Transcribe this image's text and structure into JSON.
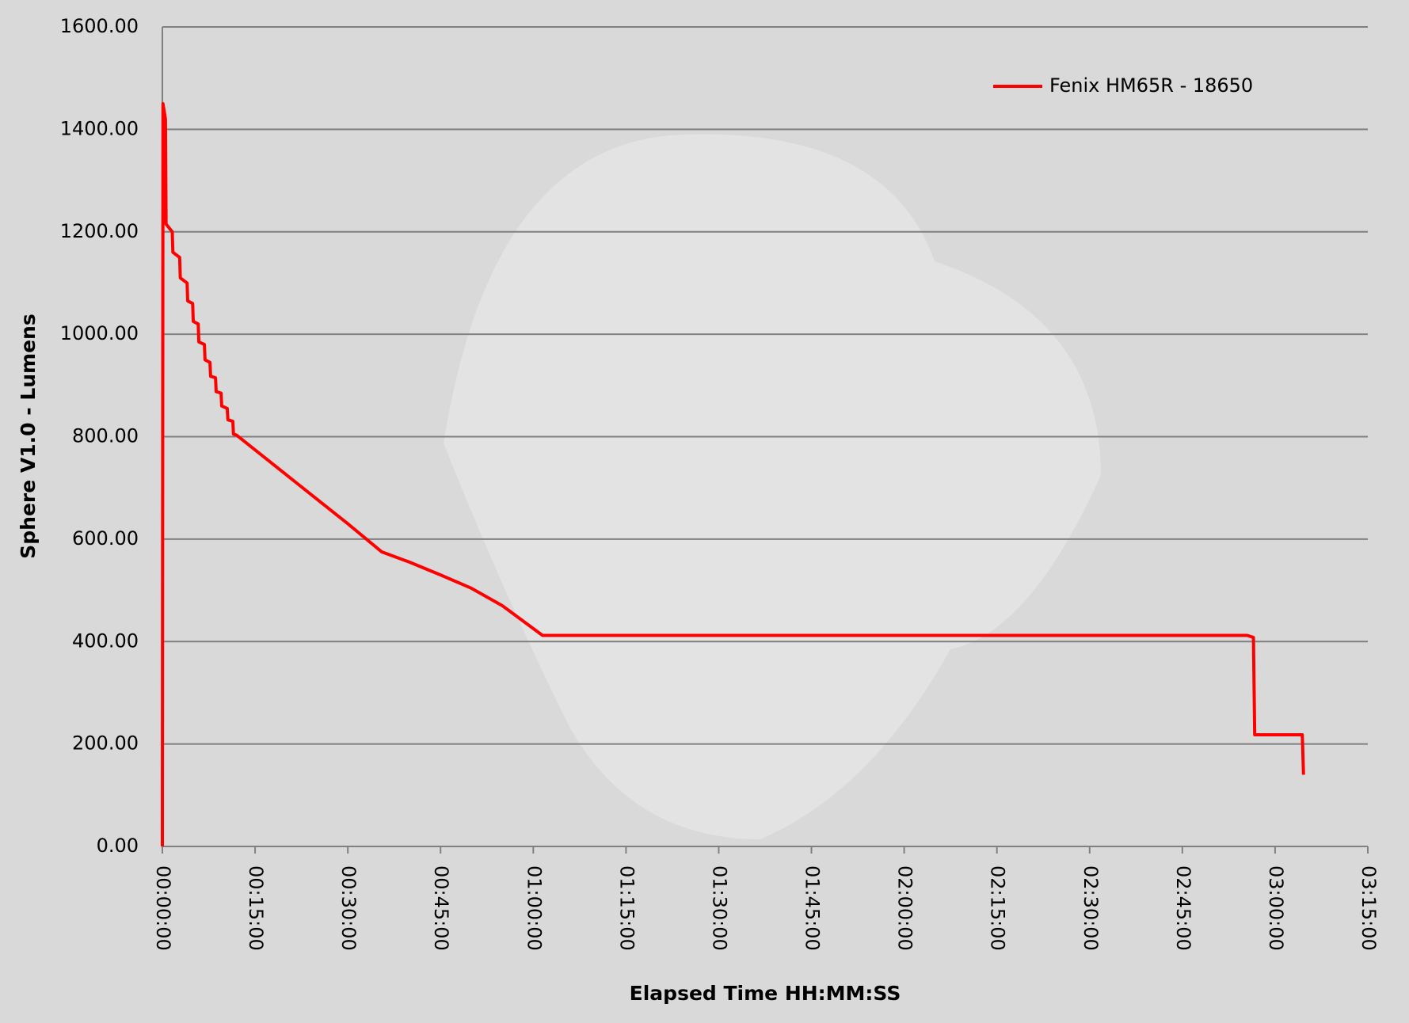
{
  "chart_data": {
    "type": "line",
    "y_label": "Sphere V1.0 - Lumens",
    "x_label": "Elapsed Time HH:MM:SS",
    "x": [
      0,
      0.1,
      0.5,
      0.6,
      1.6,
      1.7,
      2.8,
      2.9,
      4.0,
      4.1,
      4.9,
      5.0,
      5.8,
      5.9,
      6.8,
      6.9,
      7.7,
      7.8,
      8.6,
      8.7,
      9.5,
      9.6,
      10.5,
      10.6,
      11.4,
      11.5,
      12,
      20,
      30,
      35.5,
      40,
      45,
      50,
      55,
      61.5,
      100,
      140,
      175.5,
      176.5,
      176.7,
      184.4,
      184.6
    ],
    "series": [
      {
        "name": "Fenix HM65R - 18650",
        "color": "#ff0000",
        "values": [
          0,
          1450,
          1420,
          1215,
          1200,
          1160,
          1150,
          1110,
          1100,
          1065,
          1060,
          1025,
          1020,
          985,
          980,
          950,
          945,
          918,
          915,
          888,
          885,
          860,
          855,
          833,
          830,
          805,
          803,
          726,
          630,
          575,
          555,
          530,
          504,
          470,
          412,
          412,
          412,
          412,
          408,
          218,
          218,
          140
        ]
      }
    ],
    "xlim": [
      0,
      195
    ],
    "xticks": [
      {
        "value": 0,
        "label": "00:00:00"
      },
      {
        "value": 15,
        "label": "00:15:00"
      },
      {
        "value": 30,
        "label": "00:30:00"
      },
      {
        "value": 45,
        "label": "00:45:00"
      },
      {
        "value": 60,
        "label": "01:00:00"
      },
      {
        "value": 75,
        "label": "01:15:00"
      },
      {
        "value": 90,
        "label": "01:30:00"
      },
      {
        "value": 105,
        "label": "01:45:00"
      },
      {
        "value": 120,
        "label": "02:00:00"
      },
      {
        "value": 135,
        "label": "02:15:00"
      },
      {
        "value": 150,
        "label": "02:30:00"
      },
      {
        "value": 165,
        "label": "02:45:00"
      },
      {
        "value": 180,
        "label": "03:00:00"
      },
      {
        "value": 195,
        "label": "03:15:00"
      }
    ],
    "ylim": [
      0,
      1600
    ],
    "yticks": [
      {
        "value": 0,
        "label": "0.00"
      },
      {
        "value": 200,
        "label": "200.00"
      },
      {
        "value": 400,
        "label": "400.00"
      },
      {
        "value": 600,
        "label": "600.00"
      },
      {
        "value": 800,
        "label": "800.00"
      },
      {
        "value": 1000,
        "label": "1000.00"
      },
      {
        "value": 1200,
        "label": "1200.00"
      },
      {
        "value": 1400,
        "label": "1400.00"
      },
      {
        "value": 1600,
        "label": "1600.00"
      }
    ],
    "grid": true,
    "legend": "top-right"
  }
}
